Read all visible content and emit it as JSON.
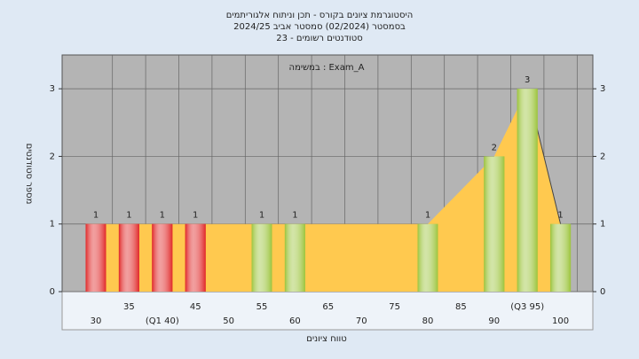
{
  "chart_data": {
    "type": "bar",
    "title": [
      "היסטוגרמת ציונים בקורס - תכן וניתוח אלגוריתמים",
      "בסמסטר (02/2024) סמסטר אביב 2024/25",
      "סטודנטים רשומים - 23"
    ],
    "annotation": "במשימה : Exam_A",
    "x_label": "טווח ציונים",
    "y_label": "מספר סטודנטים",
    "categories": [
      "30",
      "35",
      "(Q1 40)",
      "45",
      "50",
      "55",
      "60",
      "65",
      "70",
      "75",
      "80",
      "85",
      "90",
      "(Q3 95)",
      "100"
    ],
    "values": [
      1,
      1,
      1,
      1,
      0,
      1,
      1,
      0,
      0,
      0,
      1,
      0,
      2,
      3,
      1
    ],
    "colors": [
      "#e02828",
      "#e02828",
      "#e02828",
      "#e02828",
      "#e02828",
      "#9cc43c",
      "#9cc43c",
      "#9cc43c",
      "#9cc43c",
      "#9cc43c",
      "#9cc43c",
      "#9cc43c",
      "#9cc43c",
      "#9cc43c",
      "#9cc43c"
    ],
    "area": {
      "color": "#ffc94f",
      "values": [
        1,
        1,
        1,
        1,
        1,
        1,
        1,
        1,
        1,
        1,
        1,
        1.5,
        2,
        3,
        1
      ]
    },
    "ylim": [
      0,
      3.5
    ],
    "yticks": [
      0,
      1,
      2,
      3
    ],
    "grid": true
  }
}
